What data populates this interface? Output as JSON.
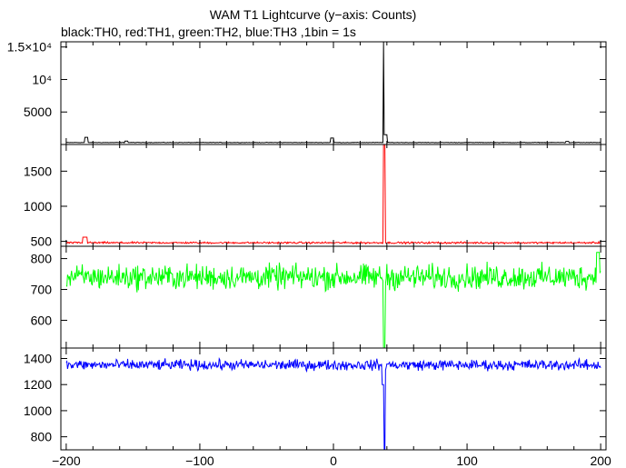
{
  "chart_data": {
    "type": "line",
    "title": "WAM T1 Lightcurve (y−axis: Counts)",
    "subtitle": "black:TH0, red:TH1, green:TH2, blue:TH3 ,1bin = 1s",
    "xlim": [
      -204,
      204
    ],
    "x_ticks": [
      -200,
      -100,
      0,
      100,
      200
    ],
    "x_tick_labels": [
      "−200",
      "−100",
      "0",
      "100",
      "200"
    ],
    "grid": false,
    "panels": [
      {
        "name": "TH0",
        "color": "#000000",
        "ylim": [
          0,
          15800
        ],
        "y_ticks": [
          5000,
          10000,
          15000
        ],
        "y_tick_labels": [
          "5000",
          "10⁴",
          "1.5×10⁴"
        ],
        "baseline": 300,
        "noise": 30,
        "features": [
          {
            "x": -185,
            "width": 2,
            "value": 1100
          },
          {
            "x": -155,
            "width": 2,
            "value": 520
          },
          {
            "x": -1,
            "width": 2,
            "value": 1000
          },
          {
            "x": 38,
            "width": 1,
            "value": 15800
          },
          {
            "x": 39,
            "width": 2,
            "value": 1500
          },
          {
            "x": 175,
            "width": 2,
            "value": 480
          }
        ]
      },
      {
        "name": "TH1",
        "color": "#ff0000",
        "ylim": [
          430,
          1880
        ],
        "y_ticks": [
          500,
          1000,
          1500
        ],
        "y_tick_labels": [
          "500",
          "1000",
          "1500"
        ],
        "baseline": 480,
        "noise": 9,
        "features": [
          {
            "x": -186,
            "width": 3,
            "value": 560
          },
          {
            "x": 38,
            "width": 1,
            "value": 1880
          }
        ]
      },
      {
        "name": "TH2",
        "color": "#00ff00",
        "ylim": [
          510,
          840
        ],
        "y_ticks": [
          600,
          700,
          800
        ],
        "y_tick_labels": [
          "600",
          "700",
          "800"
        ],
        "baseline": 740,
        "noise": 28,
        "features": [
          {
            "x": 38,
            "width": 1,
            "value": 510
          },
          {
            "x": 198,
            "width": 2,
            "value": 820
          }
        ]
      },
      {
        "name": "TH3",
        "color": "#0000ff",
        "ylim": [
          700,
          1480
        ],
        "y_ticks": [
          800,
          1000,
          1200,
          1400
        ],
        "y_tick_labels": [
          "800",
          "1000",
          "1200",
          "1400"
        ],
        "baseline": 1350,
        "noise": 28,
        "features": [
          {
            "x": 38,
            "width": 1,
            "value": 700
          },
          {
            "x": 37,
            "width": 1,
            "value": 1200
          }
        ]
      }
    ]
  }
}
